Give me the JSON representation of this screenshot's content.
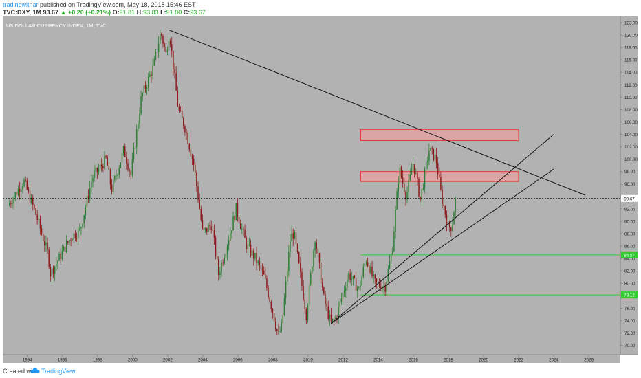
{
  "header": {
    "author": "tradingwithar",
    "published_text": "published on TradingView.com, May 18, 2018 15:46 EST",
    "symbol": "TVC:DXY, 1M",
    "last": "93.67",
    "change_arrow": "▲",
    "change": "+0.20 (+0.21%)",
    "o_label": "O:",
    "o_value": "91.81",
    "h_label": "H:",
    "h_value": "93.83",
    "l_label": "L:",
    "l_value": "91.80",
    "c_label": "C:",
    "c_value": "93.67"
  },
  "footer": {
    "created_with": "Created with",
    "brand": "TradingView",
    "logo_icon": "tradingview-cloud-icon"
  },
  "colors": {
    "plot_background": "#b2b2b2",
    "up_candle": "#2e7d32",
    "down_candle": "#8b1a1a",
    "resistance_box_fill": "#e8a0a0",
    "resistance_box_stroke": "#e53935",
    "support_line": "#33cc33",
    "trend_line": "#111111",
    "price_line": "#111111",
    "axis_text": "#222222"
  },
  "chart_data": {
    "type": "candlestick",
    "title": "US DOLLAR CURRENCY INDEX, 1M, TVC",
    "y_axis_side": "right",
    "grid": false,
    "ylim": [
      68.5,
      123.0
    ],
    "xlim": [
      1992.6,
      2027.8
    ],
    "y_ticks": [
      "122.00",
      "120.00",
      "118.00",
      "116.00",
      "114.00",
      "112.00",
      "110.00",
      "108.00",
      "106.00",
      "104.00",
      "102.00",
      "100.00",
      "98.00",
      "96.00",
      "94.00",
      "92.00",
      "90.00",
      "88.00",
      "86.00",
      "84.00",
      "82.00",
      "80.00",
      "78.00",
      "76.00",
      "74.00",
      "72.00",
      "70.00",
      "68.00"
    ],
    "x_ticks": [
      "1994",
      "1996",
      "1998",
      "2000",
      "2002",
      "2004",
      "2006",
      "2008",
      "2010",
      "2012",
      "2014",
      "2016",
      "2018",
      "2020",
      "2022",
      "2024",
      "2026"
    ],
    "anchors": [
      [
        1992.9,
        92.5
      ],
      [
        1993.8,
        96.5
      ],
      [
        1994.5,
        91.0
      ],
      [
        1995.2,
        84.5
      ],
      [
        1995.3,
        81.5
      ],
      [
        1995.9,
        84.5
      ],
      [
        1996.5,
        87.5
      ],
      [
        1997.0,
        88.5
      ],
      [
        1997.7,
        97.0
      ],
      [
        1998.5,
        100.0
      ],
      [
        1998.8,
        95.0
      ],
      [
        1999.5,
        101.5
      ],
      [
        1999.9,
        97.5
      ],
      [
        2000.5,
        110.0
      ],
      [
        2001.2,
        115.0
      ],
      [
        2001.6,
        120.5
      ],
      [
        2001.9,
        117.0
      ],
      [
        2002.1,
        120.5
      ],
      [
        2002.6,
        108.0
      ],
      [
        2003.0,
        105.0
      ],
      [
        2003.5,
        99.0
      ],
      [
        2004.0,
        88.0
      ],
      [
        2004.5,
        89.5
      ],
      [
        2004.9,
        81.5
      ],
      [
        2005.5,
        87.5
      ],
      [
        2005.9,
        92.0
      ],
      [
        2006.5,
        86.0
      ],
      [
        2007.0,
        84.0
      ],
      [
        2007.5,
        81.0
      ],
      [
        2007.9,
        76.5
      ],
      [
        2008.3,
        71.5
      ],
      [
        2008.5,
        73.0
      ],
      [
        2009.0,
        87.5
      ],
      [
        2009.2,
        88.0
      ],
      [
        2009.9,
        75.0
      ],
      [
        2010.4,
        87.5
      ],
      [
        2010.9,
        77.5
      ],
      [
        2011.3,
        73.5
      ],
      [
        2011.6,
        74.5
      ],
      [
        2012.3,
        81.5
      ],
      [
        2012.9,
        79.0
      ],
      [
        2013.3,
        84.0
      ],
      [
        2013.8,
        80.0
      ],
      [
        2014.4,
        79.5
      ],
      [
        2014.8,
        85.5
      ],
      [
        2015.2,
        98.5
      ],
      [
        2015.6,
        94.0
      ],
      [
        2016.0,
        99.5
      ],
      [
        2016.4,
        93.5
      ],
      [
        2016.9,
        101.5
      ],
      [
        2017.3,
        100.0
      ],
      [
        2017.6,
        94.0
      ],
      [
        2018.0,
        89.0
      ],
      [
        2018.2,
        89.2
      ],
      [
        2018.4,
        93.67
      ]
    ],
    "current_price": 93.67,
    "current_price_label": "93.67",
    "resistance_zones": [
      {
        "x0": 2013.0,
        "x1": 2022.0,
        "y0": 103.0,
        "y1": 104.8
      },
      {
        "x0": 2013.0,
        "x1": 2022.0,
        "y0": 96.4,
        "y1": 98.0
      }
    ],
    "support_levels": [
      {
        "value": 84.57,
        "label": "84.57",
        "x0": 2013.0
      },
      {
        "value": 78.12,
        "label": "78.12",
        "x0": 2013.0
      }
    ],
    "trend_lines": [
      {
        "x0": 2002.1,
        "y0": 120.8,
        "x1": 2025.8,
        "y1": 94.2
      },
      {
        "x0": 2011.3,
        "y0": 73.5,
        "x1": 2024.0,
        "y1": 104.0
      },
      {
        "x0": 2011.3,
        "y0": 73.5,
        "x1": 2024.0,
        "y1": 98.4
      }
    ]
  }
}
